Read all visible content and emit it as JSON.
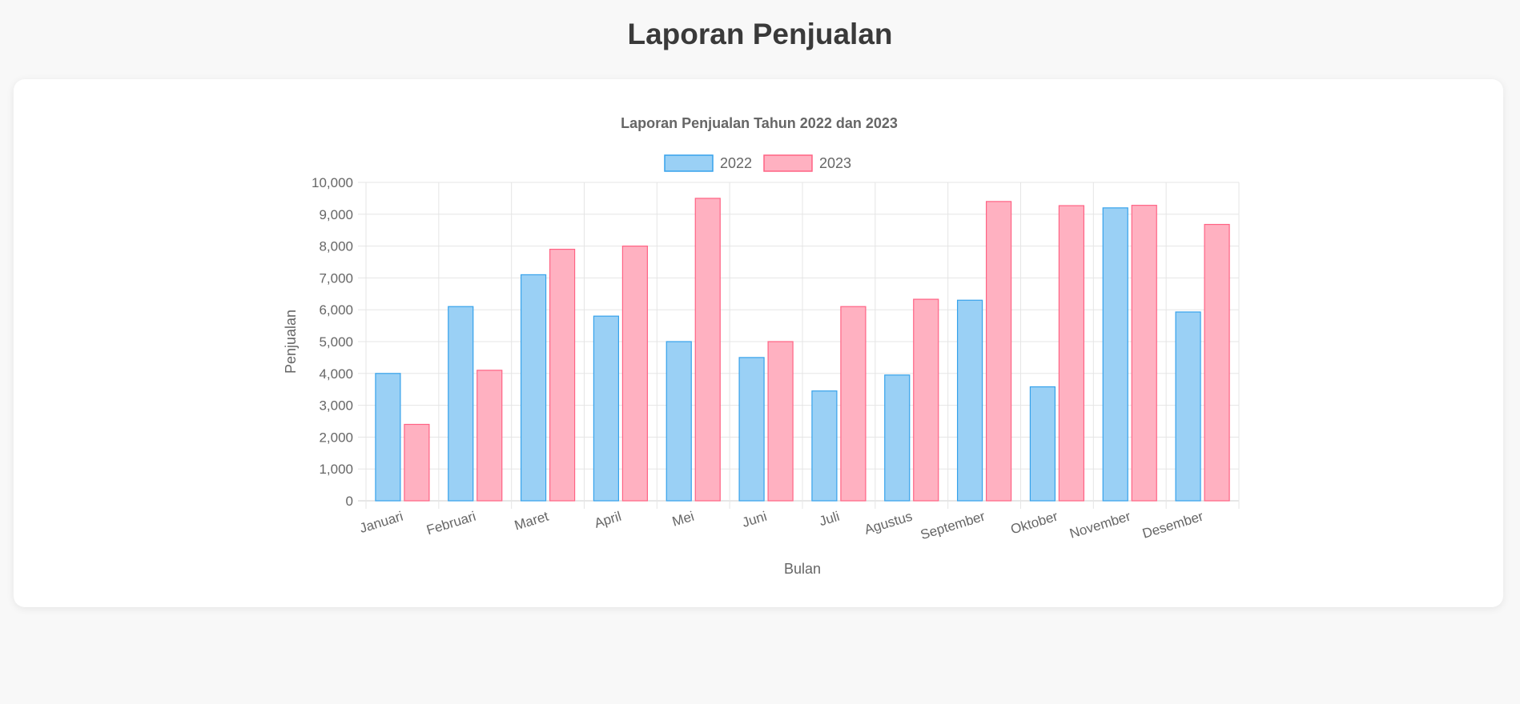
{
  "page": {
    "title": "Laporan Penjualan"
  },
  "colors": {
    "series_2022_fill": "#9ad0f5",
    "series_2022_stroke": "#36a2eb",
    "series_2023_fill": "#ffb1c1",
    "series_2023_stroke": "#ff6384",
    "grid": "#e5e5e5",
    "text": "#666666"
  },
  "chart_data": {
    "type": "bar",
    "title": "Laporan Penjualan Tahun 2022 dan 2023",
    "xlabel": "Bulan",
    "ylabel": "Penjualan",
    "ylim": [
      0,
      10000
    ],
    "yticks": [
      "0",
      "1,000",
      "2,000",
      "3,000",
      "4,000",
      "5,000",
      "6,000",
      "7,000",
      "8,000",
      "9,000",
      "10,000"
    ],
    "grid": true,
    "legend_position": "top",
    "categories": [
      "Januari",
      "Februari",
      "Maret",
      "April",
      "Mei",
      "Juni",
      "Juli",
      "Agustus",
      "September",
      "Oktober",
      "November",
      "Desember"
    ],
    "series": [
      {
        "name": "2022",
        "values": [
          4000,
          6100,
          7100,
          5800,
          5000,
          4500,
          3450,
          3950,
          6300,
          3580,
          9200,
          5930
        ]
      },
      {
        "name": "2023",
        "values": [
          2400,
          4100,
          7900,
          8000,
          9500,
          5000,
          6100,
          6330,
          9400,
          9270,
          9280,
          8680
        ]
      }
    ]
  }
}
